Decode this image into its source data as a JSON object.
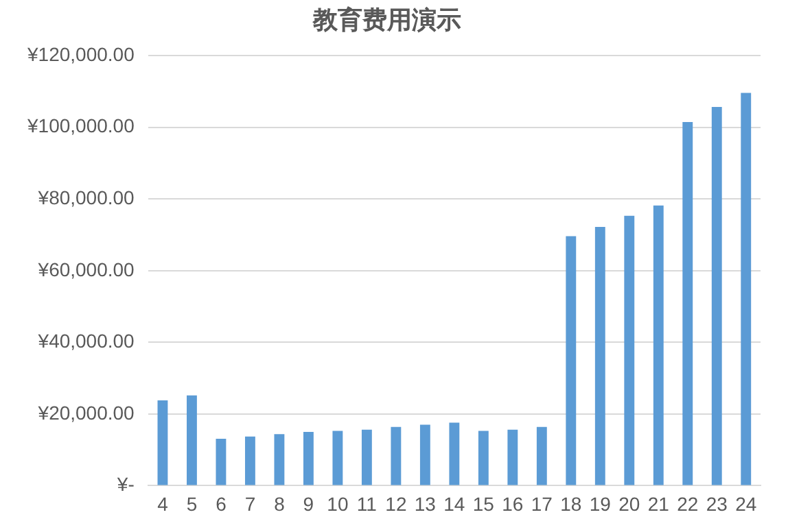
{
  "chart_data": {
    "type": "bar",
    "title": "教育费用演示",
    "categories": [
      "4",
      "5",
      "6",
      "7",
      "8",
      "9",
      "10",
      "11",
      "12",
      "13",
      "14",
      "15",
      "16",
      "17",
      "18",
      "19",
      "20",
      "21",
      "22",
      "23",
      "24"
    ],
    "values": [
      23800,
      25200,
      13100,
      13700,
      14400,
      15000,
      15300,
      15600,
      16400,
      17000,
      17600,
      15300,
      15600,
      16400,
      69600,
      72200,
      75300,
      78200,
      101500,
      105700,
      109600
    ],
    "color": "#5b9bd5",
    "ylim": [
      0,
      120000
    ],
    "yticks": [
      {
        "value": 0,
        "label": "¥-"
      },
      {
        "value": 20000,
        "label": "¥20,000.00"
      },
      {
        "value": 40000,
        "label": "¥40,000.00"
      },
      {
        "value": 60000,
        "label": "¥60,000.00"
      },
      {
        "value": 80000,
        "label": "¥80,000.00"
      },
      {
        "value": 100000,
        "label": "¥100,000.00"
      },
      {
        "value": 120000,
        "label": "¥120,000.00"
      }
    ],
    "grid": "y",
    "legend": false
  }
}
